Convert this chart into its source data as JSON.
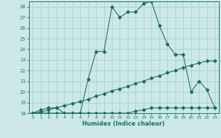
{
  "background_color": "#cce8e8",
  "grid_color": "#aacfcf",
  "line_color": "#1a7060",
  "xlabel": "Humidex (Indice chaleur)",
  "xlim": [
    -0.5,
    23.5
  ],
  "ylim": [
    18,
    28.5
  ],
  "yticks": [
    18,
    19,
    20,
    21,
    22,
    23,
    24,
    25,
    26,
    27,
    28
  ],
  "xticks": [
    0,
    1,
    2,
    3,
    4,
    5,
    6,
    7,
    8,
    9,
    10,
    11,
    12,
    13,
    14,
    15,
    16,
    17,
    18,
    19,
    20,
    21,
    22,
    23
  ],
  "line1_x": [
    0,
    1,
    2,
    3,
    4,
    5,
    6,
    7,
    8,
    9,
    10,
    11,
    12,
    13,
    14,
    15,
    16,
    17,
    18,
    19,
    20,
    21,
    22,
    23
  ],
  "line1_y": [
    18.0,
    18.3,
    18.5,
    18.5,
    18.0,
    18.0,
    18.0,
    21.2,
    23.8,
    23.8,
    28.0,
    27.0,
    27.5,
    27.5,
    28.3,
    28.5,
    26.2,
    24.5,
    23.5,
    23.5,
    20.0,
    21.0,
    20.2,
    18.5
  ],
  "line2_x": [
    0,
    1,
    2,
    3,
    4,
    5,
    6,
    7,
    8,
    9,
    10,
    11,
    12,
    13,
    14,
    15,
    16,
    17,
    18,
    19,
    20,
    21,
    22,
    23
  ],
  "line2_y": [
    18.0,
    18.0,
    18.0,
    18.0,
    18.0,
    18.0,
    18.0,
    18.0,
    18.0,
    18.0,
    18.0,
    18.0,
    18.0,
    18.2,
    18.3,
    18.5,
    18.5,
    18.5,
    18.5,
    18.5,
    18.5,
    18.5,
    18.5,
    18.5
  ],
  "line3_x": [
    0,
    1,
    2,
    3,
    4,
    5,
    6,
    7,
    8,
    9,
    10,
    11,
    12,
    13,
    14,
    15,
    16,
    17,
    18,
    19,
    20,
    21,
    22,
    23
  ],
  "line3_y": [
    18.0,
    18.1,
    18.3,
    18.5,
    18.7,
    18.9,
    19.1,
    19.3,
    19.6,
    19.8,
    20.1,
    20.3,
    20.5,
    20.8,
    21.0,
    21.3,
    21.5,
    21.8,
    22.0,
    22.3,
    22.5,
    22.7,
    22.9,
    22.9
  ]
}
